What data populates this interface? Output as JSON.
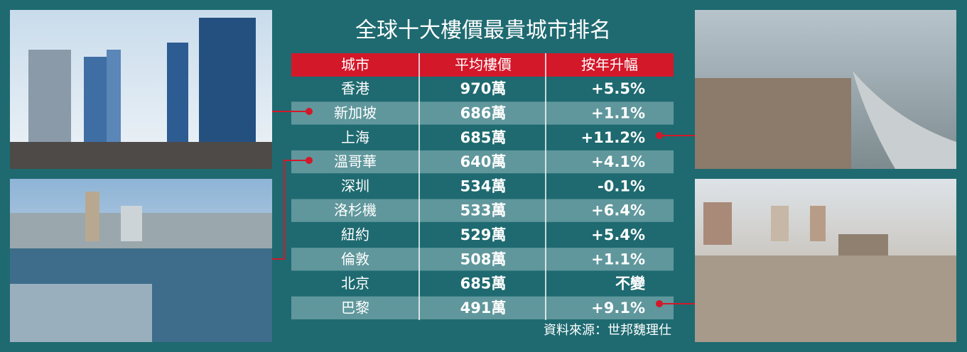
{
  "title": "全球十大樓價最貴城市排名",
  "table": {
    "header": [
      "城市",
      "平均樓價",
      "按年升幅"
    ],
    "rows": [
      [
        "香港",
        "970萬",
        "+5.5%"
      ],
      [
        "新加坡",
        "686萬",
        "+1.1%"
      ],
      [
        "上海",
        "685萬",
        "+11.2%"
      ],
      [
        "溫哥華",
        "640萬",
        "+4.1%"
      ],
      [
        "深圳",
        "534萬",
        "-0.1%"
      ],
      [
        "洛杉機",
        "533萬",
        "+6.4%"
      ],
      [
        "紐約",
        "529萬",
        "+5.4%"
      ],
      [
        "倫敦",
        "508萬",
        "+1.1%"
      ],
      [
        "北京",
        "685萬",
        "不變"
      ],
      [
        "巴黎",
        "491萬",
        "+9.1%"
      ]
    ]
  },
  "source": "資料來源：世邦魏理仕"
}
